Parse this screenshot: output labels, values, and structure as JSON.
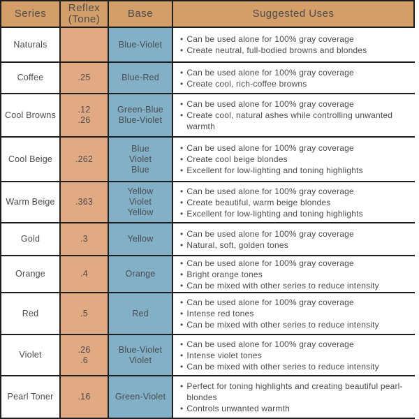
{
  "colors": {
    "header_bg": "#d39e68",
    "reflex_bg": "#e2aa83",
    "base_bg": "#82b1c7",
    "text": "#4b4b4d",
    "border": "#1e1e1e"
  },
  "chart_data": {
    "type": "table",
    "bullet_glyph": "•",
    "headers": [
      "Series",
      "Reflex\n(Tone)",
      "Base",
      "Suggested Uses"
    ],
    "rows": [
      {
        "series": "Naturals",
        "reflex": [],
        "base": [
          "Blue-Violet"
        ],
        "uses": [
          "Can be used alone for 100% gray coverage",
          "Create neutral, full-bodied browns and blondes"
        ]
      },
      {
        "series": "Coffee",
        "reflex": [
          ".25"
        ],
        "base": [
          "Blue-Red"
        ],
        "uses": [
          "Can be used alone for 100% gray coverage",
          "Create cool, rich-coffee browns"
        ]
      },
      {
        "series": "Cool Browns",
        "reflex": [
          ".12",
          ".26"
        ],
        "base": [
          "Green-Blue",
          "Blue-Violet"
        ],
        "uses": [
          "Can be used alone for 100% gray coverage",
          "Create cool, natural ashes while controlling unwanted warmth"
        ]
      },
      {
        "series": "Cool Beige",
        "reflex": [
          ".262"
        ],
        "base": [
          "Blue",
          "Violet",
          "Blue"
        ],
        "uses": [
          "Can be used alone for 100% gray coverage",
          "Create cool beige blondes",
          "Excellent for low-lighting and toning highlights"
        ]
      },
      {
        "series": "Warm Beige",
        "reflex": [
          ".363"
        ],
        "base": [
          "Yellow",
          "Violet",
          "Yellow"
        ],
        "uses": [
          "Can be used alone for 100% gray coverage",
          "Create beautiful, warm beige blondes",
          "Excellent for low-lighting and toning highlights"
        ]
      },
      {
        "series": "Gold",
        "reflex": [
          ".3"
        ],
        "base": [
          "Yellow"
        ],
        "uses": [
          "Can be used alone for 100% gray coverage",
          "Natural, soft, golden tones"
        ]
      },
      {
        "series": "Orange",
        "reflex": [
          ".4"
        ],
        "base": [
          "Orange"
        ],
        "uses": [
          "Can be used alone for 100% gray coverage",
          "Bright orange tones",
          "Can be mixed with other series to reduce intensity"
        ]
      },
      {
        "series": "Red",
        "reflex": [
          ".5"
        ],
        "base": [
          "Red"
        ],
        "uses": [
          "Can be used alone for 100% gray coverage",
          "Intense red tones",
          "Can be mixed with other series to reduce intensity"
        ]
      },
      {
        "series": "Violet",
        "reflex": [
          ".26",
          ".6"
        ],
        "base": [
          "Blue-Violet",
          "Violet"
        ],
        "uses": [
          "Can be used alone for 100% gray coverage",
          "Intense violet tones",
          "Can be mixed with other series to reduce intensity"
        ]
      },
      {
        "series": "Pearl Toner",
        "reflex": [
          ".16"
        ],
        "base": [
          "Green-Violet"
        ],
        "uses": [
          "Perfect for toning highlights and creating beautiful pearl-blondes",
          "Controls unwanted warmth"
        ]
      }
    ]
  }
}
